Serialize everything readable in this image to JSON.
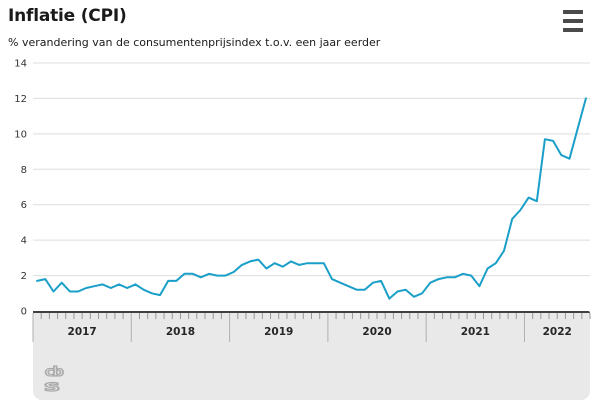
{
  "header": {
    "title": "Inflatie (CPI)",
    "subtitle": "% verandering van de consumentenprijsindex t.o.v. een jaar eerder",
    "menu_icon": "hamburger-menu-icon"
  },
  "branding": {
    "logo": "cbs-logo",
    "logo_text_top": "cb",
    "logo_text_bottom": "s",
    "logo_color": "#ababab"
  },
  "colors": {
    "line": "#1a9fc8",
    "gridline": "#dedede",
    "axis_line": "#404040",
    "panel_background": "#e9e9e9",
    "tick": "#999999",
    "year_separator": "#b0b0b0",
    "y_label": "#333333",
    "year_label": "#262626"
  },
  "chart_data": {
    "type": "line",
    "title": "Inflatie (CPI)",
    "subtitle": "% verandering van de consumentenprijsindex t.o.v. een jaar eerder",
    "x_unit": "month",
    "x_start": "2017-01",
    "x_end": "2022-08",
    "year_labels": [
      "2017",
      "2018",
      "2019",
      "2020",
      "2021",
      "2022"
    ],
    "values_by_year": {
      "2017": [
        1.7,
        1.8,
        1.1,
        1.6,
        1.1,
        1.1,
        1.3,
        1.4,
        1.5,
        1.3,
        1.5,
        1.3
      ],
      "2018": [
        1.5,
        1.2,
        1.0,
        0.9,
        1.7,
        1.7,
        2.1,
        2.1,
        1.9,
        2.1,
        2.0,
        2.0
      ],
      "2019": [
        2.2,
        2.6,
        2.8,
        2.9,
        2.4,
        2.7,
        2.5,
        2.8,
        2.6,
        2.7,
        2.7,
        2.7
      ],
      "2020": [
        1.8,
        1.6,
        1.4,
        1.2,
        1.2,
        1.6,
        1.7,
        0.7,
        1.1,
        1.2,
        0.8,
        1.0
      ],
      "2021": [
        1.6,
        1.8,
        1.9,
        1.9,
        2.1,
        2.0,
        1.4,
        2.4,
        2.7,
        3.4,
        5.2,
        5.7
      ],
      "2022": [
        6.4,
        6.2,
        9.7,
        9.6,
        8.8,
        8.6,
        10.3,
        12.0
      ]
    },
    "ylim": [
      0,
      14
    ],
    "yticks": [
      0,
      2,
      4,
      6,
      8,
      10,
      12,
      14
    ],
    "grid": true,
    "legend": "none",
    "line_color": "#1a9fc8"
  }
}
